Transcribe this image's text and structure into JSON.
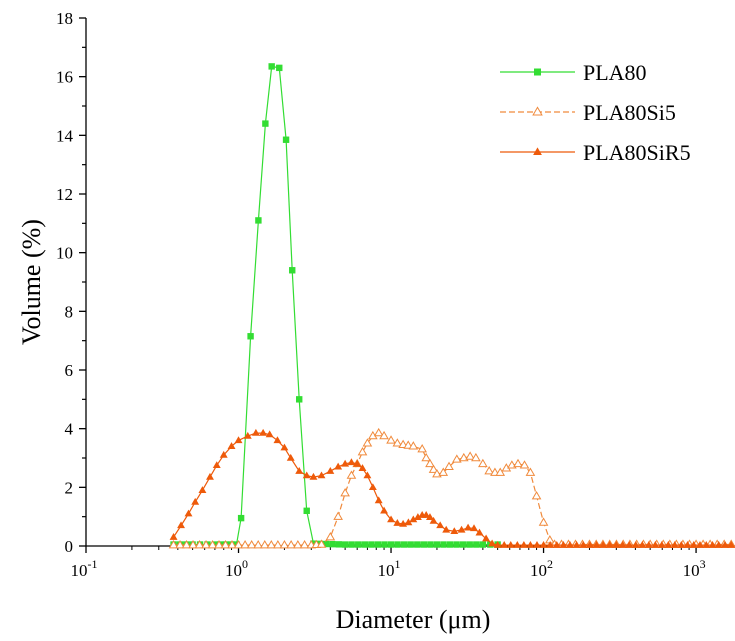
{
  "chart_data": {
    "type": "line",
    "xlabel": "Diameter (μm)",
    "ylabel": "Volume (%)",
    "xscale": "log",
    "xlim": [
      0.1,
      1800
    ],
    "ylim": [
      0,
      18
    ],
    "yticks": [
      "0",
      "2",
      "4",
      "6",
      "8",
      "10",
      "12",
      "14",
      "16",
      "18"
    ],
    "xticks": [
      {
        "base": "10",
        "exp": "-1",
        "value": 0.1
      },
      {
        "base": "10",
        "exp": "0",
        "value": 1
      },
      {
        "base": "10",
        "exp": "1",
        "value": 10
      },
      {
        "base": "10",
        "exp": "2",
        "value": 100
      },
      {
        "base": "10",
        "exp": "3",
        "value": 1000
      }
    ],
    "grid": false,
    "legend": "top-right",
    "series": [
      {
        "name": "PLA80",
        "color": "#33dd33",
        "marker": "square-filled",
        "line": "solid",
        "points": [
          [
            0.375,
            0.05
          ],
          [
            0.5,
            0.05
          ],
          [
            0.7,
            0.05
          ],
          [
            0.9,
            0.05
          ],
          [
            0.97,
            0.05
          ],
          [
            1.04,
            0.95
          ],
          [
            1.2,
            7.15
          ],
          [
            1.35,
            11.1
          ],
          [
            1.5,
            14.4
          ],
          [
            1.65,
            16.35
          ],
          [
            1.85,
            16.3
          ],
          [
            2.05,
            13.85
          ],
          [
            2.25,
            9.4
          ],
          [
            2.5,
            5.0
          ],
          [
            2.8,
            1.2
          ],
          [
            3.1,
            0.08
          ],
          [
            5,
            0.05
          ],
          [
            10,
            0.05
          ],
          [
            20,
            0.05
          ],
          [
            40,
            0.05
          ],
          [
            50,
            0.05
          ]
        ]
      },
      {
        "name": "PLA80Si5",
        "color": "#f08a3c",
        "marker": "triangle-open",
        "line": "dashed",
        "points": [
          [
            0.375,
            0.03
          ],
          [
            1,
            0.03
          ],
          [
            2,
            0.03
          ],
          [
            3,
            0.03
          ],
          [
            3.5,
            0.05
          ],
          [
            4,
            0.3
          ],
          [
            4.5,
            1.0
          ],
          [
            5,
            1.8
          ],
          [
            5.5,
            2.4
          ],
          [
            6,
            2.8
          ],
          [
            6.5,
            3.2
          ],
          [
            7,
            3.5
          ],
          [
            7.6,
            3.75
          ],
          [
            8.3,
            3.85
          ],
          [
            9,
            3.75
          ],
          [
            10,
            3.6
          ],
          [
            11,
            3.5
          ],
          [
            12,
            3.45
          ],
          [
            14,
            3.4
          ],
          [
            16,
            3.3
          ],
          [
            17,
            3.0
          ],
          [
            18,
            2.8
          ],
          [
            19,
            2.6
          ],
          [
            20,
            2.45
          ],
          [
            22,
            2.5
          ],
          [
            24,
            2.7
          ],
          [
            27,
            2.95
          ],
          [
            30,
            3.0
          ],
          [
            33,
            3.05
          ],
          [
            36,
            3.0
          ],
          [
            40,
            2.8
          ],
          [
            44,
            2.55
          ],
          [
            48,
            2.5
          ],
          [
            52,
            2.5
          ],
          [
            57,
            2.65
          ],
          [
            62,
            2.75
          ],
          [
            68,
            2.8
          ],
          [
            75,
            2.75
          ],
          [
            82,
            2.5
          ],
          [
            90,
            1.7
          ],
          [
            100,
            0.8
          ],
          [
            110,
            0.2
          ],
          [
            118,
            0.05
          ],
          [
            200,
            0.05
          ],
          [
            500,
            0.05
          ],
          [
            1000,
            0.05
          ],
          [
            1700,
            0.05
          ]
        ]
      },
      {
        "name": "PLA80SiR5",
        "color": "#ee5a0a",
        "marker": "triangle-filled",
        "line": "solid",
        "points": [
          [
            0.375,
            0.3
          ],
          [
            0.42,
            0.7
          ],
          [
            0.47,
            1.1
          ],
          [
            0.52,
            1.5
          ],
          [
            0.58,
            1.9
          ],
          [
            0.65,
            2.35
          ],
          [
            0.72,
            2.75
          ],
          [
            0.8,
            3.1
          ],
          [
            0.9,
            3.4
          ],
          [
            1.0,
            3.6
          ],
          [
            1.15,
            3.75
          ],
          [
            1.3,
            3.85
          ],
          [
            1.45,
            3.85
          ],
          [
            1.6,
            3.8
          ],
          [
            1.8,
            3.6
          ],
          [
            2.0,
            3.35
          ],
          [
            2.2,
            3.0
          ],
          [
            2.5,
            2.55
          ],
          [
            2.8,
            2.4
          ],
          [
            3.1,
            2.35
          ],
          [
            3.5,
            2.4
          ],
          [
            4,
            2.55
          ],
          [
            4.5,
            2.7
          ],
          [
            5,
            2.8
          ],
          [
            5.5,
            2.85
          ],
          [
            6,
            2.8
          ],
          [
            6.5,
            2.65
          ],
          [
            7,
            2.4
          ],
          [
            7.6,
            2.0
          ],
          [
            8.3,
            1.55
          ],
          [
            9,
            1.2
          ],
          [
            10,
            0.9
          ],
          [
            11,
            0.78
          ],
          [
            12,
            0.75
          ],
          [
            13,
            0.8
          ],
          [
            14,
            0.9
          ],
          [
            15,
            0.98
          ],
          [
            16,
            1.05
          ],
          [
            17,
            1.05
          ],
          [
            18,
            0.98
          ],
          [
            19,
            0.85
          ],
          [
            21,
            0.7
          ],
          [
            23,
            0.55
          ],
          [
            26,
            0.5
          ],
          [
            29,
            0.55
          ],
          [
            32,
            0.62
          ],
          [
            35,
            0.6
          ],
          [
            38,
            0.45
          ],
          [
            42,
            0.25
          ],
          [
            46,
            0.08
          ],
          [
            50,
            0.03
          ],
          [
            100,
            0.03
          ],
          [
            300,
            0.03
          ],
          [
            800,
            0.03
          ],
          [
            1700,
            0.03
          ]
        ]
      }
    ]
  }
}
